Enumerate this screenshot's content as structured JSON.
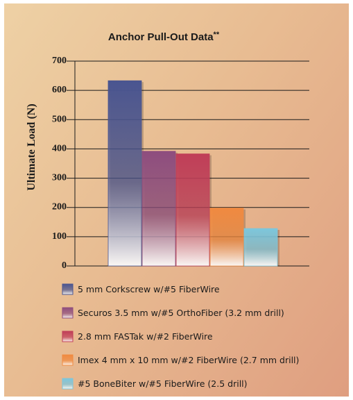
{
  "chart_data": {
    "type": "bar",
    "title": "Anchor Pull-Out Data",
    "title_suffix": "**",
    "ylabel": "Ultimate Load (N)",
    "xlabel": "",
    "ylim": [
      0,
      700
    ],
    "yticks": [
      0,
      100,
      200,
      300,
      400,
      500,
      600,
      700
    ],
    "grid": "horizontal",
    "legend_position": "bottom",
    "categories": [
      "5 mm Corkscrew w/#5 FiberWire",
      "Securos 3.5 mm w/#5 OrthoFiber (3.2 mm drill)",
      "2.8 mm FASTak w/#2 FiberWire",
      "Imex 4 mm x 10 mm w/#2 FiberWire (2.7 mm drill)",
      "#5 BoneBiter w/#5 FiberWire (2.5 drill)"
    ],
    "values": [
      633,
      392,
      383,
      198,
      128
    ],
    "colors": [
      "#4a5590",
      "#8e4d7e",
      "#c03e58",
      "#f08a40",
      "#7cc6dc"
    ]
  }
}
